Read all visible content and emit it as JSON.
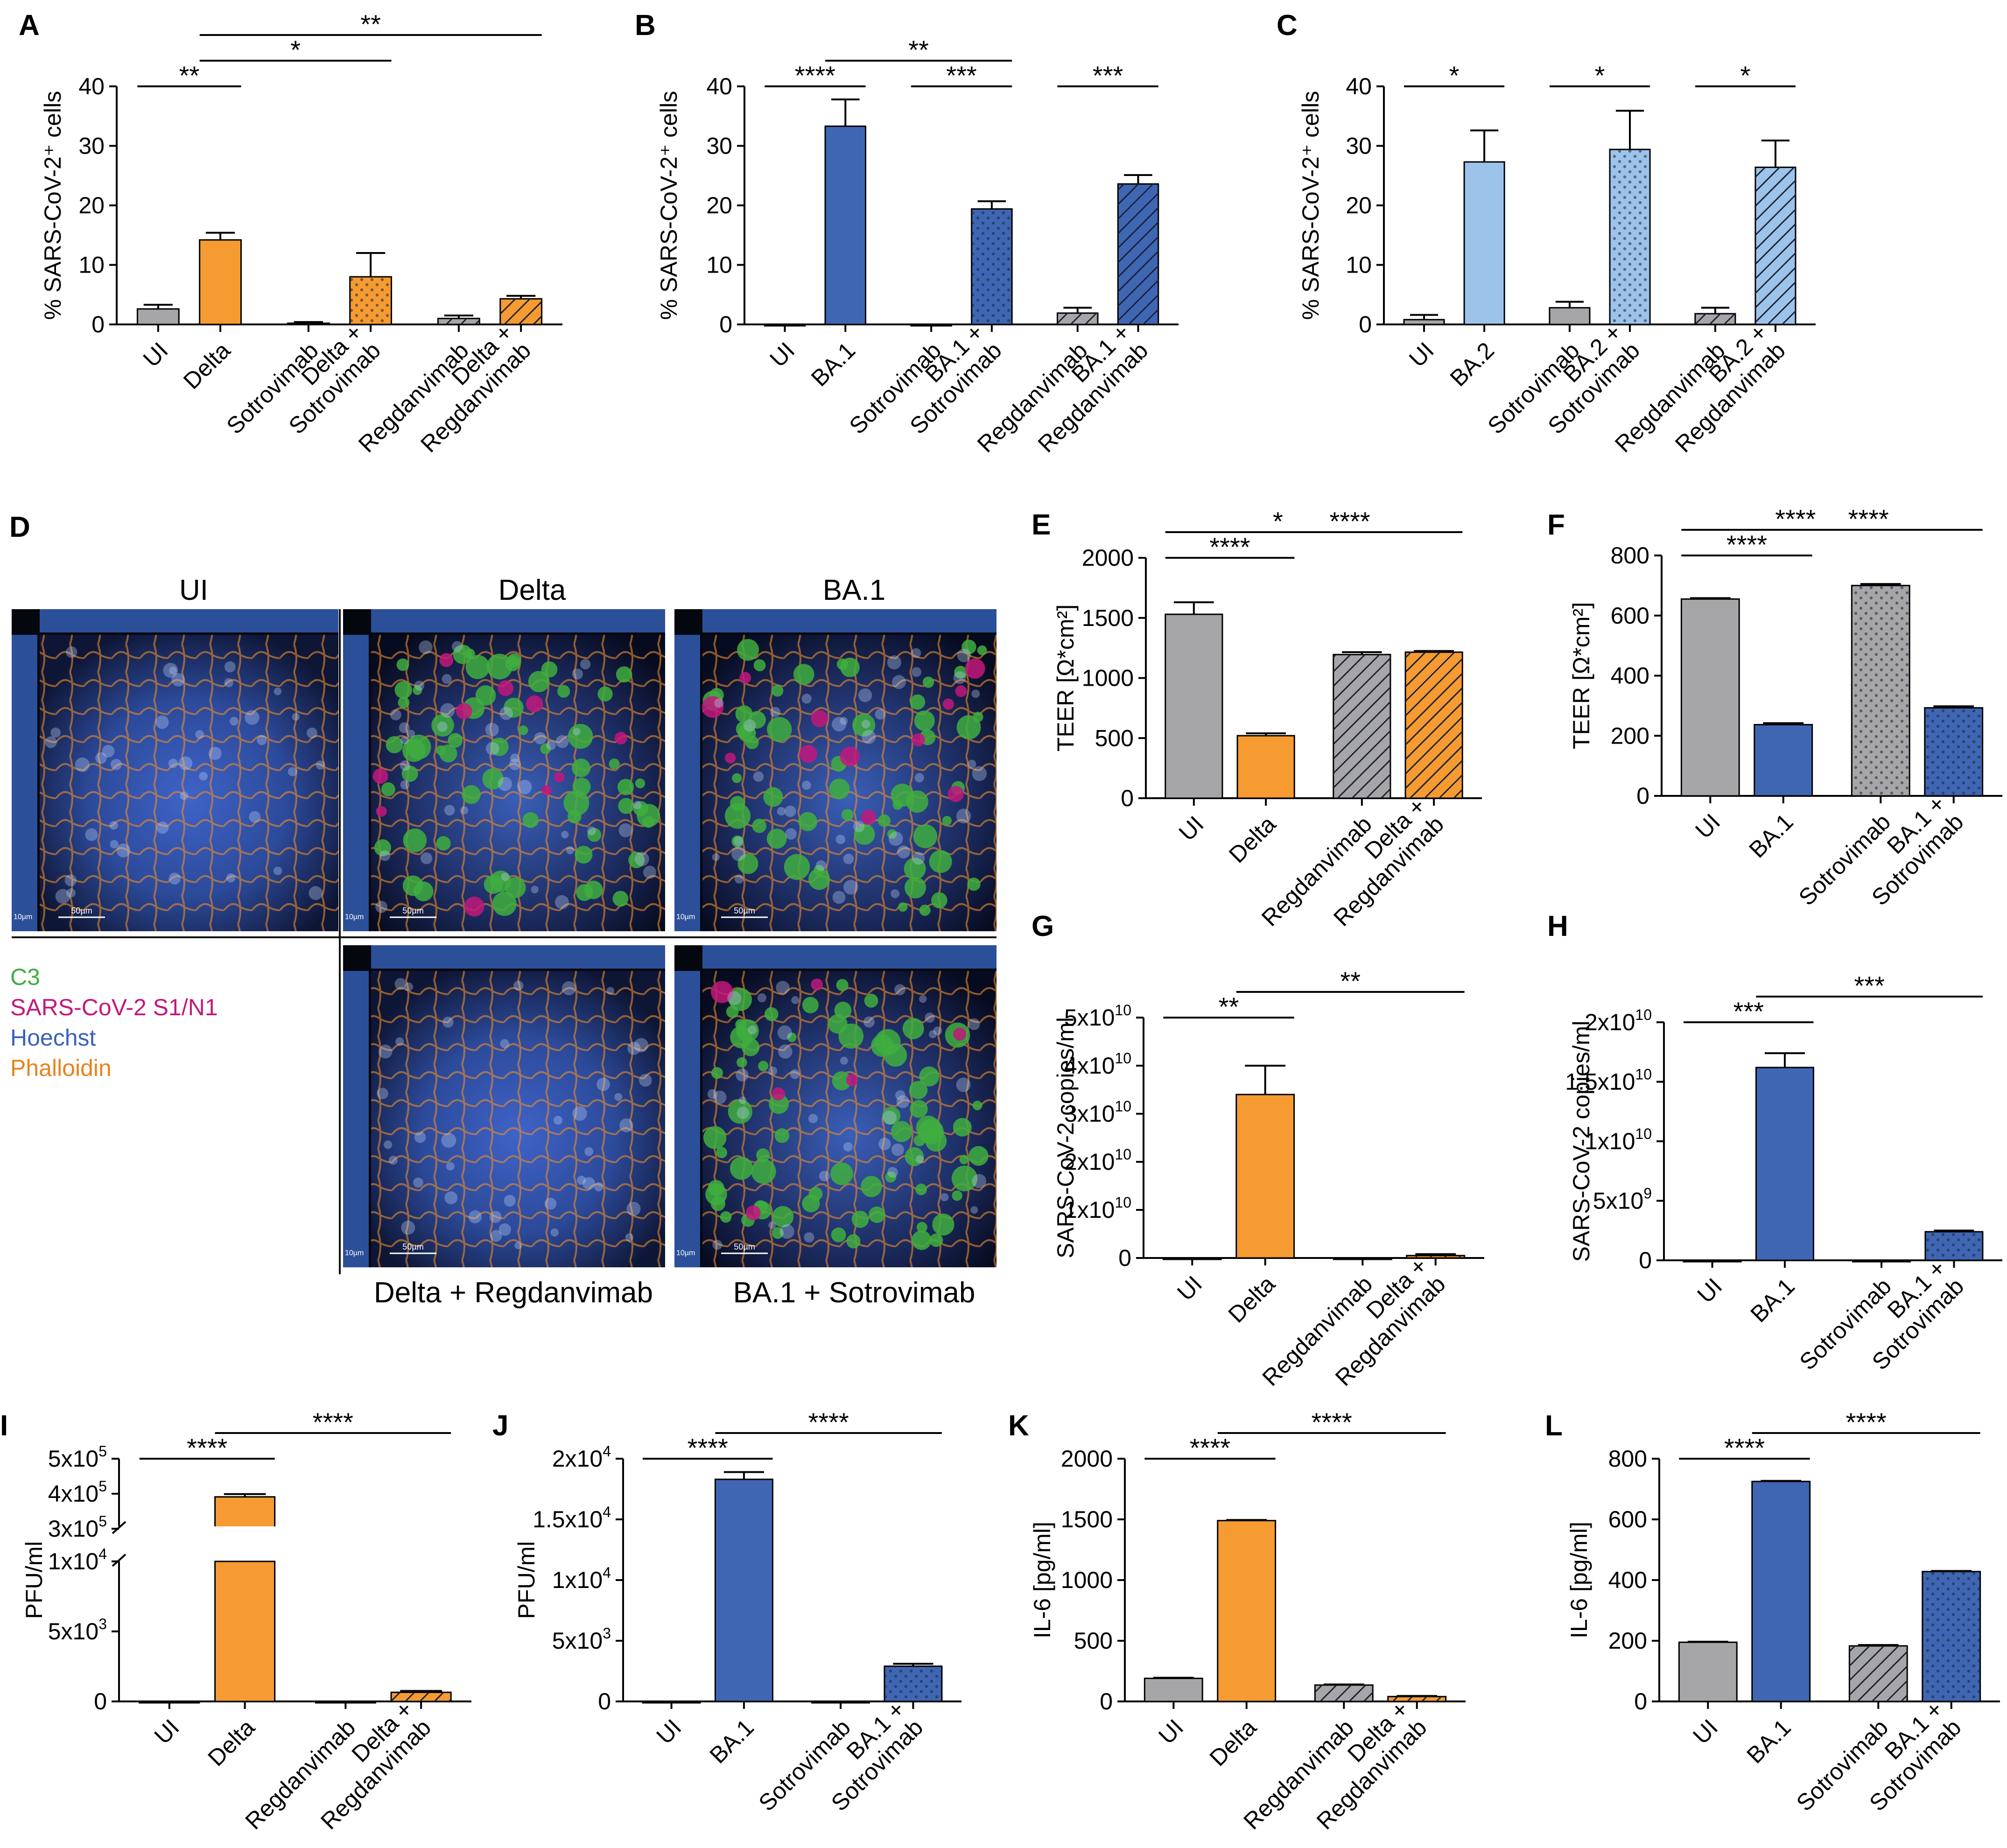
{
  "colors": {
    "grey": "#a6a6a8",
    "orange": "#f59b31",
    "blue": "#3e66b3",
    "lightblue": "#9cc3ea",
    "c3": "#3fae3f",
    "sars": "#c2187d",
    "hoechst": "#3a62b7",
    "phall": "#e8821c"
  },
  "chart_data": [
    {
      "id": "A",
      "type": "bar",
      "ylabel": "% SARS-CoV-2⁺ cells",
      "ylim": [
        0,
        40
      ],
      "yticks": [
        "0",
        "10",
        "20",
        "30",
        "40"
      ],
      "categories": [
        [
          "UI"
        ],
        [
          "Delta"
        ],
        [
          "Sotrovimab"
        ],
        [
          "Delta +",
          "Sotrovimab"
        ],
        [
          "Regdanvimab"
        ],
        [
          "Delta +",
          "Regdanvimab"
        ]
      ],
      "values": [
        2.6,
        14.2,
        0.2,
        8.0,
        1.0,
        4.3
      ],
      "errors": [
        0.7,
        1.2,
        0.2,
        4.0,
        0.5,
        0.5
      ],
      "fills": [
        "grey",
        "orange",
        "grey",
        "orange",
        "grey",
        "orange"
      ],
      "patterns": [
        "solid",
        "solid",
        "solid",
        "dots",
        "hatch",
        "hatch"
      ],
      "sig": [
        {
          "a": 0,
          "b": 1,
          "label": "**"
        },
        {
          "a": 1,
          "b": 3,
          "label": "*"
        },
        {
          "a": 1,
          "b": 5,
          "label": "**"
        }
      ]
    },
    {
      "id": "B",
      "type": "bar",
      "ylabel": "% SARS-CoV-2⁺ cells",
      "ylim": [
        0,
        40
      ],
      "yticks": [
        "0",
        "10",
        "20",
        "30",
        "40"
      ],
      "categories": [
        [
          "UI"
        ],
        [
          "BA.1"
        ],
        [
          "Sotrovimab"
        ],
        [
          "BA.1 +",
          "Sotrovimab"
        ],
        [
          "Regdanvimab"
        ],
        [
          "BA.1 +",
          "Regdanvimab"
        ]
      ],
      "values": [
        0,
        33.3,
        0,
        19.4,
        1.9,
        23.6
      ],
      "errors": [
        0,
        4.5,
        0,
        1.3,
        0.9,
        1.5
      ],
      "fills": [
        "grey",
        "blue",
        "grey",
        "blue",
        "grey",
        "blue"
      ],
      "patterns": [
        "solid",
        "solid",
        "solid",
        "dots",
        "hatch",
        "hatch"
      ],
      "sig": [
        {
          "a": 0,
          "b": 1,
          "label": "****"
        },
        {
          "a": 1,
          "b": 3,
          "label": "**"
        },
        {
          "a": 2,
          "b": 3,
          "label": "***"
        },
        {
          "a": 4,
          "b": 5,
          "label": "***"
        }
      ]
    },
    {
      "id": "C",
      "type": "bar",
      "ylabel": "% SARS-CoV-2⁺ cells",
      "ylim": [
        0,
        40
      ],
      "yticks": [
        "0",
        "10",
        "20",
        "30",
        "40"
      ],
      "categories": [
        [
          "UI"
        ],
        [
          "BA.2"
        ],
        [
          "Sotrovimab"
        ],
        [
          "BA.2 +",
          "Sotrovimab"
        ],
        [
          "Regdanvimab"
        ],
        [
          "BA.2 +",
          "Regdanvimab"
        ]
      ],
      "values": [
        0.8,
        27.3,
        2.8,
        29.4,
        1.8,
        26.4
      ],
      "errors": [
        0.8,
        5.3,
        1.0,
        6.5,
        1.0,
        4.5
      ],
      "fills": [
        "grey",
        "lightblue",
        "grey",
        "lightblue",
        "grey",
        "lightblue"
      ],
      "patterns": [
        "solid",
        "solid",
        "solid",
        "dots",
        "hatch",
        "hatch"
      ],
      "sig": [
        {
          "a": 0,
          "b": 1,
          "label": "*"
        },
        {
          "a": 2,
          "b": 3,
          "label": "*"
        },
        {
          "a": 4,
          "b": 5,
          "label": "*"
        }
      ]
    },
    {
      "id": "E",
      "type": "bar",
      "ylabel": "TEER [Ω*cm²]",
      "ylim": [
        0,
        2000
      ],
      "yticks": [
        "0",
        "500",
        "1000",
        "1500",
        "2000"
      ],
      "categories": [
        [
          "UI"
        ],
        [
          "Delta"
        ],
        [
          "Regdanvimab"
        ],
        [
          "Delta +",
          "Regdanvimab"
        ]
      ],
      "values": [
        1530,
        520,
        1195,
        1215
      ],
      "errors": [
        100,
        20,
        20,
        10
      ],
      "fills": [
        "grey",
        "orange",
        "grey",
        "orange"
      ],
      "patterns": [
        "solid",
        "solid",
        "hatch",
        "hatch"
      ],
      "sig": [
        {
          "a": 0,
          "b": 1,
          "label": "****"
        },
        {
          "a": 0,
          "b": 2,
          "label": "*"
        },
        {
          "a": 1,
          "b": 3,
          "label": "****"
        }
      ]
    },
    {
      "id": "F",
      "type": "bar",
      "ylabel": "TEER [Ω*cm²]",
      "ylim": [
        0,
        800
      ],
      "yticks": [
        "0",
        "200",
        "400",
        "600",
        "800"
      ],
      "categories": [
        [
          "UI"
        ],
        [
          "BA.1"
        ],
        [
          "Sotrovimab"
        ],
        [
          "BA.1 +",
          "Sotrovimab"
        ]
      ],
      "values": [
        655,
        237,
        700,
        293
      ],
      "errors": [
        3,
        5,
        5,
        5
      ],
      "fills": [
        "grey",
        "blue",
        "grey",
        "blue"
      ],
      "patterns": [
        "solid",
        "solid",
        "dots",
        "dots"
      ],
      "sig": [
        {
          "a": 0,
          "b": 1,
          "label": "****"
        },
        {
          "a": 0,
          "b": 2,
          "label": "****"
        },
        {
          "a": 1,
          "b": 3,
          "label": "****"
        }
      ]
    },
    {
      "id": "G",
      "type": "bar",
      "ylabel": "SARS-CoV-2 copies/ml",
      "ylim": [
        0,
        5
      ],
      "yticks": [
        [
          "0",
          ""
        ],
        [
          "1x10",
          "10"
        ],
        [
          "2x10",
          "10"
        ],
        [
          "3x10",
          "10"
        ],
        [
          "4x10",
          "10"
        ],
        [
          "5x10",
          "10"
        ]
      ],
      "categories": [
        [
          "UI"
        ],
        [
          "Delta"
        ],
        [
          "Regdanvimab"
        ],
        [
          "Delta +",
          "Regdanvimab"
        ]
      ],
      "values": [
        0,
        3.4,
        0,
        0.05
      ],
      "errors": [
        0,
        0.6,
        0,
        0.03
      ],
      "fills": [
        "grey",
        "orange",
        "grey",
        "orange"
      ],
      "patterns": [
        "solid",
        "solid",
        "hatch",
        "hatch"
      ],
      "sig": [
        {
          "a": 0,
          "b": 1,
          "label": "**"
        },
        {
          "a": 1,
          "b": 3,
          "label": "**"
        }
      ]
    },
    {
      "id": "H",
      "type": "bar",
      "ylabel": "SARS-CoV-2 copies/ml",
      "ylim": [
        0,
        2
      ],
      "yticks": [
        [
          "0",
          ""
        ],
        [
          "5x10",
          "9"
        ],
        [
          "1x10",
          "10"
        ],
        [
          "1.5x10",
          "10"
        ],
        [
          "2x10",
          "10"
        ]
      ],
      "categories": [
        [
          "UI"
        ],
        [
          "BA.1"
        ],
        [
          "Sotrovimab"
        ],
        [
          "BA.1 +",
          "Sotrovimab"
        ]
      ],
      "values": [
        0,
        1.62,
        0,
        0.24
      ],
      "errors": [
        0,
        0.12,
        0,
        0.01
      ],
      "fills": [
        "grey",
        "blue",
        "grey",
        "blue"
      ],
      "patterns": [
        "solid",
        "solid",
        "dots",
        "dots"
      ],
      "sig": [
        {
          "a": 0,
          "b": 1,
          "label": "***"
        },
        {
          "a": 1,
          "b": 3,
          "label": "***"
        }
      ]
    },
    {
      "id": "I",
      "type": "bar",
      "ylabel": "PFU/ml",
      "broken": true,
      "yticks": [
        [
          "0",
          ""
        ],
        [
          "5x10",
          "3"
        ],
        [
          "1x10",
          "4"
        ],
        [
          "3x10",
          "5"
        ],
        [
          "4x10",
          "5"
        ],
        [
          "5x10",
          "5"
        ]
      ],
      "categories": [
        [
          "UI"
        ],
        [
          "Delta"
        ],
        [
          "Regdanvimab"
        ],
        [
          "Delta +",
          "Regdanvimab"
        ]
      ],
      "values": [
        0,
        391000,
        0,
        650
      ],
      "errors": [
        0,
        8000,
        0,
        100
      ],
      "fills": [
        "grey",
        "orange",
        "grey",
        "orange"
      ],
      "patterns": [
        "solid",
        "solid",
        "hatch",
        "hatch"
      ],
      "sig": [
        {
          "a": 0,
          "b": 1,
          "label": "****"
        },
        {
          "a": 1,
          "b": 3,
          "label": "****"
        }
      ]
    },
    {
      "id": "J",
      "type": "bar",
      "ylabel": "PFU/ml",
      "ylim": [
        0,
        2
      ],
      "yticks": [
        [
          "0",
          ""
        ],
        [
          "5x10",
          "3"
        ],
        [
          "1x10",
          "4"
        ],
        [
          "1.5x10",
          "4"
        ],
        [
          "2x10",
          "4"
        ]
      ],
      "categories": [
        [
          "UI"
        ],
        [
          "BA.1"
        ],
        [
          "Sotrovimab"
        ],
        [
          "BA.1 +",
          "Sotrovimab"
        ]
      ],
      "values": [
        0,
        1.83,
        0,
        0.29
      ],
      "errors": [
        0,
        0.06,
        0,
        0.02
      ],
      "fills": [
        "grey",
        "blue",
        "grey",
        "blue"
      ],
      "patterns": [
        "solid",
        "solid",
        "dots",
        "dots"
      ],
      "sig": [
        {
          "a": 0,
          "b": 1,
          "label": "****"
        },
        {
          "a": 1,
          "b": 3,
          "label": "****"
        }
      ]
    },
    {
      "id": "K",
      "type": "bar",
      "ylabel": "IL-6 [pg/ml]",
      "ylim": [
        0,
        2000
      ],
      "yticks": [
        "0",
        "500",
        "1000",
        "1500",
        "2000"
      ],
      "categories": [
        [
          "UI"
        ],
        [
          "Delta"
        ],
        [
          "Regdanvimab"
        ],
        [
          "Delta +",
          "Regdanvimab"
        ]
      ],
      "values": [
        190,
        1490,
        135,
        40
      ],
      "errors": [
        5,
        5,
        5,
        5
      ],
      "fills": [
        "grey",
        "orange",
        "grey",
        "orange"
      ],
      "patterns": [
        "solid",
        "solid",
        "hatch",
        "hatch"
      ],
      "sig": [
        {
          "a": 0,
          "b": 1,
          "label": "****"
        },
        {
          "a": 1,
          "b": 3,
          "label": "****"
        }
      ]
    },
    {
      "id": "L",
      "type": "bar",
      "ylabel": "IL-6 [pg/ml]",
      "ylim": [
        0,
        800
      ],
      "yticks": [
        "0",
        "200",
        "400",
        "600",
        "800"
      ],
      "categories": [
        [
          "UI"
        ],
        [
          "BA.1"
        ],
        [
          "Sotrovimab"
        ],
        [
          "BA.1 +",
          "Sotrovimab"
        ]
      ],
      "values": [
        195,
        725,
        183,
        428
      ],
      "errors": [
        2,
        2,
        3,
        2
      ],
      "fills": [
        "grey",
        "blue",
        "grey",
        "blue"
      ],
      "patterns": [
        "solid",
        "solid",
        "hatch",
        "dots"
      ],
      "sig": [
        {
          "a": 0,
          "b": 1,
          "label": "****"
        },
        {
          "a": 1,
          "b": 3,
          "label": "****"
        }
      ]
    }
  ],
  "panel_D": {
    "label": "D",
    "titles": [
      "UI",
      "Delta",
      "BA.1"
    ],
    "bottom_titles": [
      "Delta + Regdanvimab",
      "BA.1 + Sotrovimab"
    ],
    "legend": [
      {
        "text": "C3",
        "color": "c3"
      },
      {
        "text": "SARS-CoV-2 S1/N1",
        "color": "sars"
      },
      {
        "text": "Hoechst",
        "color": "hoechst"
      },
      {
        "text": "Phalloidin",
        "color": "phall"
      }
    ],
    "scalebar": "50µm",
    "zbar": "10µm"
  }
}
